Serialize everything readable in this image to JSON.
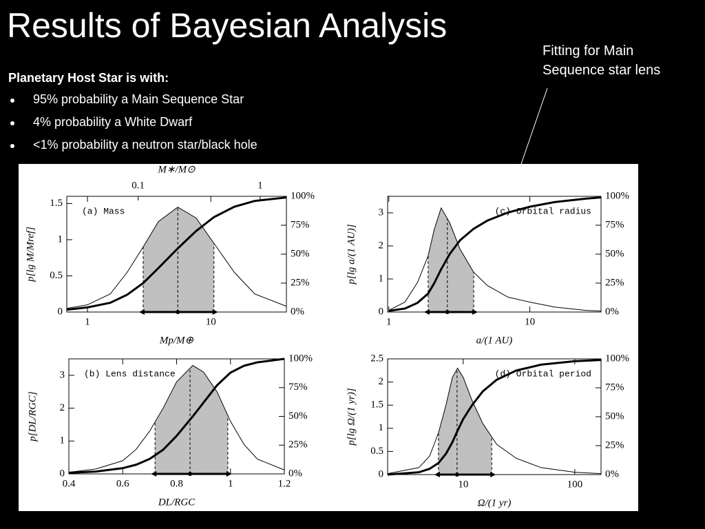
{
  "slide": {
    "title": "Results of Bayesian Analysis",
    "subtitle": "Planetary Host Star is with:",
    "bullets": [
      "95% probability a Main Sequence Star",
      "4% probability a White Dwarf",
      "<1% probability a neutron star/black hole"
    ],
    "annotation": "Fitting for Main Sequence star lens"
  },
  "chart_data": [
    {
      "type": "line",
      "panel_label": "(a) Mass",
      "label_corner": "upper left",
      "xlabel": "Mp/M⊕",
      "ylabel": "p[lg M/Mref]",
      "x2label": "M∗/M⊙",
      "xscale": "log",
      "xlim": [
        0.68,
        41
      ],
      "xticks": [
        1,
        10
      ],
      "x2scale": "log",
      "x2lim": [
        0.026,
        1.64
      ],
      "x2ticks": [
        0.1,
        1
      ],
      "ylim": [
        0,
        1.6
      ],
      "yticks": [
        0,
        0.5,
        1,
        1.5
      ],
      "y2lim": [
        0,
        100
      ],
      "y2ticks": [
        {
          "value": 0,
          "label": "0%"
        },
        {
          "value": 25,
          "label": "25%"
        },
        {
          "value": 50,
          "label": "50%"
        },
        {
          "value": 75,
          "label": "75%"
        },
        {
          "value": 100,
          "label": "100%"
        }
      ],
      "x": [
        0.68,
        1,
        1.53,
        2.1,
        2.83,
        3.76,
        5.4,
        7.6,
        10.6,
        15.5,
        22.7,
        41
      ],
      "series": [
        {
          "values": [
            0.05,
            0.1,
            0.25,
            0.55,
            0.9,
            1.25,
            1.45,
            1.3,
            0.95,
            0.55,
            0.25,
            0.08
          ],
          "color": "#000000",
          "width": 1,
          "fill": "#c0c0c0"
        },
        {
          "values": [
            2,
            4,
            8,
            15,
            25,
            38,
            55,
            70,
            82,
            91,
            96,
            99
          ],
          "axis": "y2",
          "color": "#000000",
          "width": 3
        }
      ],
      "interval": [
        2.83,
        10.6
      ],
      "median": 5.4
    },
    {
      "type": "line",
      "panel_label": "(b) Lens distance",
      "label_corner": "upper left",
      "xlabel": "DL/RGC",
      "ylabel": "p[DL/RGC]",
      "xscale": "linear",
      "xlim": [
        0.4,
        1.2
      ],
      "xticks": [
        0.4,
        0.6,
        0.8,
        1,
        1.2
      ],
      "ylim": [
        0,
        3.5
      ],
      "yticks": [
        0,
        1,
        2,
        3
      ],
      "y2lim": [
        0,
        100
      ],
      "y2ticks": [
        {
          "value": 0,
          "label": "0%"
        },
        {
          "value": 25,
          "label": "25%"
        },
        {
          "value": 50,
          "label": "50%"
        },
        {
          "value": 75,
          "label": "75%"
        },
        {
          "value": 100,
          "label": "100%"
        }
      ],
      "x": [
        0.4,
        0.5,
        0.6,
        0.65,
        0.7,
        0.75,
        0.8,
        0.86,
        0.9,
        0.95,
        1.0,
        1.05,
        1.1,
        1.2
      ],
      "series": [
        {
          "values": [
            0.05,
            0.15,
            0.4,
            0.75,
            1.3,
            2.0,
            2.8,
            3.3,
            3.1,
            2.5,
            1.6,
            0.9,
            0.45,
            0.12
          ],
          "color": "#000000",
          "width": 1,
          "fill": "#c0c0c0"
        },
        {
          "values": [
            1,
            2,
            5,
            8,
            13,
            21,
            33,
            50,
            62,
            77,
            88,
            94,
            97,
            100
          ],
          "axis": "y2",
          "color": "#000000",
          "width": 3
        }
      ],
      "interval": [
        0.72,
        0.99
      ],
      "median": 0.85
    },
    {
      "type": "line",
      "panel_label": "(c) Orbital radius",
      "label_corner": "upper right",
      "xlabel": "a/(1 AU)",
      "ylabel": "p[lg a/(1 AU)]",
      "xscale": "log",
      "xlim": [
        0.98,
        32
      ],
      "xticks": [
        1,
        10
      ],
      "ylim": [
        0,
        3.5
      ],
      "yticks": [
        0,
        1,
        2,
        3
      ],
      "y2lim": [
        0,
        100
      ],
      "y2ticks": [
        {
          "value": 0,
          "label": "0%"
        },
        {
          "value": 25,
          "label": "25%"
        },
        {
          "value": 50,
          "label": "50%"
        },
        {
          "value": 75,
          "label": "75%"
        },
        {
          "value": 100,
          "label": "100%"
        }
      ],
      "x": [
        1,
        1.3,
        1.6,
        1.9,
        2.1,
        2.35,
        2.7,
        3.2,
        4,
        5,
        7,
        10,
        15,
        25,
        32
      ],
      "series": [
        {
          "values": [
            0.05,
            0.3,
            0.9,
            1.7,
            2.5,
            3.15,
            2.7,
            1.9,
            1.2,
            0.8,
            0.45,
            0.3,
            0.15,
            0.05,
            0.03
          ],
          "color": "#000000",
          "width": 1,
          "fill": "#c0c0c0"
        },
        {
          "values": [
            1,
            3,
            8,
            16,
            25,
            37,
            50,
            62,
            72,
            79,
            86,
            91,
            95,
            98,
            99
          ],
          "axis": "y2",
          "color": "#000000",
          "width": 3
        }
      ],
      "interval": [
        1.9,
        4
      ],
      "median": 2.6
    },
    {
      "type": "line",
      "panel_label": "(d) Orbital period",
      "label_corner": "upper right",
      "xlabel": "Ω/(1 yr)",
      "ylabel": "p[lg Ω/(1 yr)]",
      "xscale": "log",
      "xlim": [
        2.1,
        172
      ],
      "xticks": [
        10,
        100
      ],
      "ylim": [
        0,
        2.5
      ],
      "yticks": [
        0,
        0.5,
        1,
        1.5,
        2,
        2.5
      ],
      "y2lim": [
        0,
        100
      ],
      "y2ticks": [
        {
          "value": 0,
          "label": "0%"
        },
        {
          "value": 25,
          "label": "25%"
        },
        {
          "value": 50,
          "label": "50%"
        },
        {
          "value": 75,
          "label": "75%"
        },
        {
          "value": 100,
          "label": "100%"
        }
      ],
      "x": [
        2.1,
        4,
        5,
        6,
        7,
        8,
        8.9,
        10,
        12,
        15,
        20,
        30,
        50,
        100,
        172
      ],
      "series": [
        {
          "values": [
            0.02,
            0.15,
            0.4,
            0.9,
            1.5,
            2.1,
            2.3,
            2.1,
            1.6,
            1.1,
            0.65,
            0.35,
            0.15,
            0.05,
            0.02
          ],
          "color": "#000000",
          "width": 1,
          "fill": "#c0c0c0"
        },
        {
          "values": [
            0,
            2,
            5,
            10,
            18,
            28,
            38,
            48,
            60,
            72,
            82,
            90,
            95,
            98,
            99
          ],
          "axis": "y2",
          "color": "#000000",
          "width": 3
        }
      ],
      "interval": [
        6,
        18
      ],
      "median": 8.8
    }
  ]
}
